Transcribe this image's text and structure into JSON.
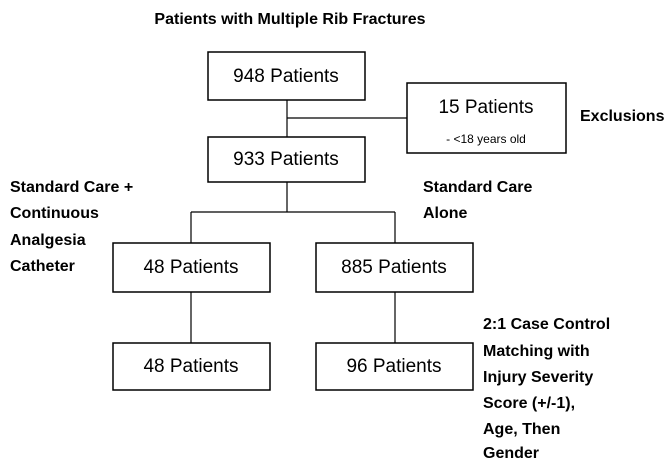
{
  "title": "Patients with Multiple Rib Fractures",
  "nodes": [
    {
      "label": "948 Patients"
    },
    {
      "label": "15 Patients",
      "note": "- <18 years old"
    },
    {
      "label": "933 Patients"
    },
    {
      "label": "48 Patients"
    },
    {
      "label": "885 Patients"
    },
    {
      "label": "48 Patients"
    },
    {
      "label": "96 Patients"
    }
  ],
  "annotations": [
    {
      "lines": [
        "Exclusions"
      ]
    },
    {
      "lines": [
        "Standard Care +",
        "Continuous",
        "Analgesia",
        "Catheter"
      ]
    },
    {
      "lines": [
        "Standard Care",
        "Alone"
      ]
    },
    {
      "lines": [
        "2:1 Case Control",
        "Matching with",
        "Injury Severity",
        "Score (+/-1),",
        "Age, Then",
        "Gender"
      ]
    }
  ]
}
